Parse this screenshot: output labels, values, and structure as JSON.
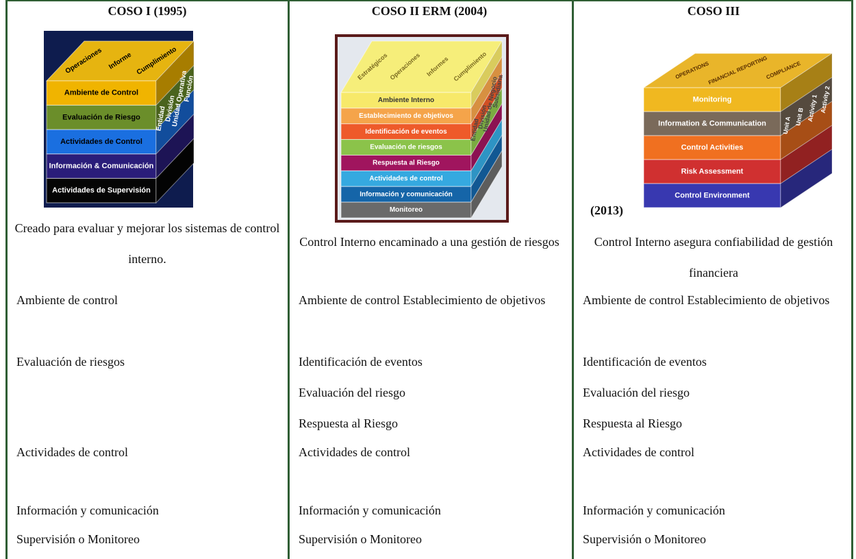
{
  "columns": [
    {
      "title": "COSO I (1995)",
      "cube": {
        "top": [
          "Operaciones",
          "Informe",
          "Cumplimiento"
        ],
        "layers": [
          "Ambiente de Control",
          "Evaluación de Riesgo",
          "Actividades de Control",
          "Información & Comunicación",
          "Actividades de Supervisión"
        ],
        "side": [
          "Entidad",
          "División",
          "Unidad Operativa",
          "Función"
        ]
      },
      "description": "Creado para evaluar y mejorar los sistemas de control interno."
    },
    {
      "title": "COSO II ERM (2004)",
      "cube": {
        "top": [
          "Estratégicos",
          "Operaciones",
          "Informes",
          "Cumplimiento"
        ],
        "layers": [
          "Ambiente Interno",
          "Establecimiento de objetivos",
          "Identificación de eventos",
          "Evaluación de riesgos",
          "Respuesta al Riesgo",
          "Actividades de control",
          "Información y comunicación",
          "Monitoreo"
        ],
        "side": [
          "Entidad",
          "División",
          "Unidad de Negocio",
          "Subsidiaria"
        ]
      },
      "description": "Control Interno encaminado a una gestión de riesgos"
    },
    {
      "title": "COSO III",
      "year": "(2013)",
      "cube": {
        "top": [
          "OPERATIONS",
          "FINANCIAL REPORTING",
          "COMPLIANCE"
        ],
        "layers": [
          "Monitoring",
          "Information & Communication",
          "Control Activities",
          "Risk Assessment",
          "Control Environment"
        ],
        "side": [
          "Unit A",
          "Unit B",
          "Activity 1",
          "Activity 2"
        ]
      },
      "description": "Control Interno asegura confiabilidad de gestión financiera"
    }
  ],
  "rows": [
    [
      "Ambiente de control",
      "Ambiente de control Establecimiento de objetivos",
      "Ambiente de control Establecimiento de objetivos"
    ],
    [
      "Evaluación de riesgos",
      "Identificación de eventos",
      "Identificación de eventos"
    ],
    [
      null,
      "Evaluación del riesgo",
      "Evaluación del riesgo"
    ],
    [
      null,
      "Respuesta al Riesgo",
      "Respuesta al Riesgo"
    ],
    [
      "Actividades de control",
      "Actividades de control",
      "Actividades de control"
    ],
    [
      "Información y comunicación",
      "Información y comunicación",
      "Información y comunicación"
    ],
    [
      "Supervisión o Monitoreo",
      "Supervisión o Monitoreo",
      "Supervisión o Monitoreo"
    ]
  ]
}
